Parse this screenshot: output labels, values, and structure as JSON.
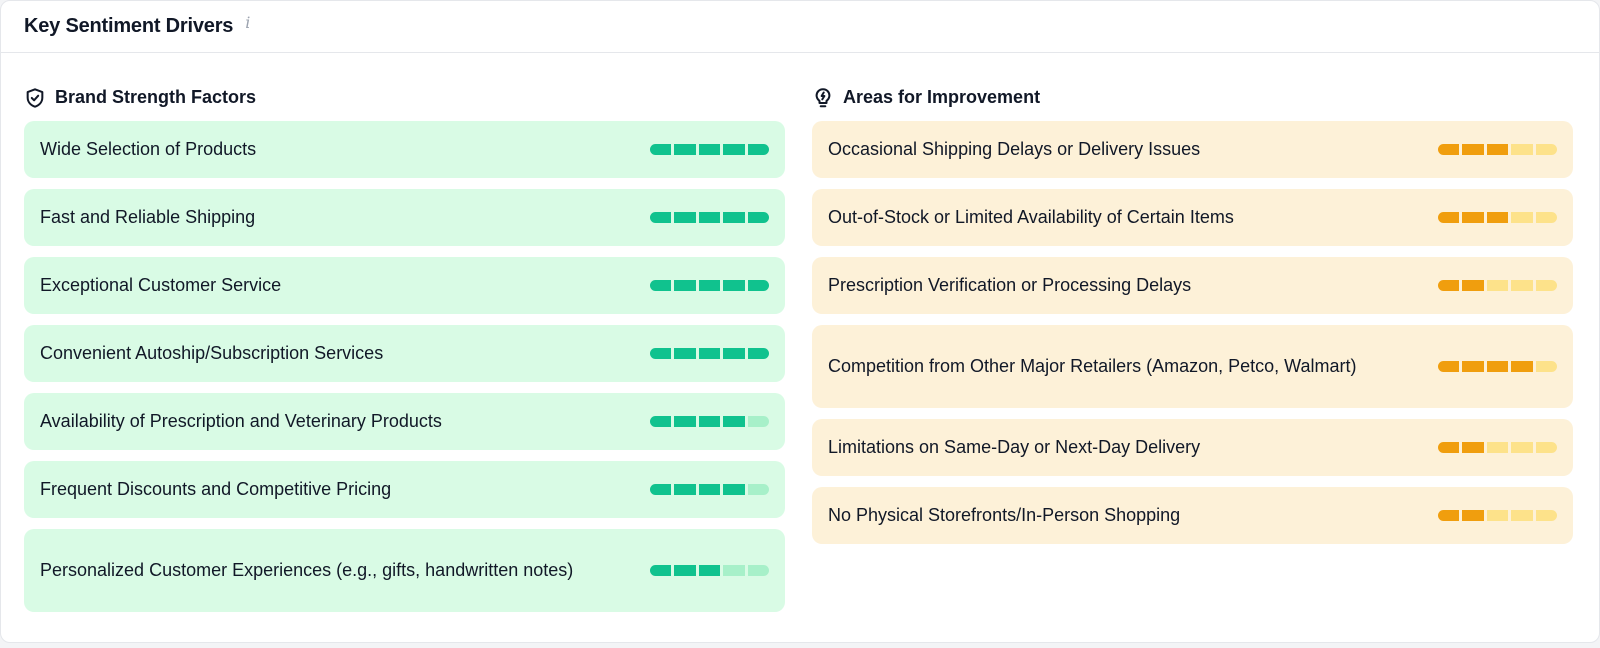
{
  "header": {
    "title": "Key Sentiment Drivers",
    "info_icon": "i"
  },
  "strengths": {
    "title": "Brand Strength Factors",
    "icon": "shield-check-icon",
    "filled_color": "#10c28e",
    "empty_color": "#a7f0c9",
    "items": [
      {
        "label": "Wide Selection of Products",
        "score": 5,
        "max": 5
      },
      {
        "label": "Fast and Reliable Shipping",
        "score": 5,
        "max": 5
      },
      {
        "label": "Exceptional Customer Service",
        "score": 5,
        "max": 5
      },
      {
        "label": "Convenient Autoship/Subscription Services",
        "score": 5,
        "max": 5
      },
      {
        "label": "Availability of Prescription and Veterinary Products",
        "score": 4,
        "max": 5
      },
      {
        "label": "Frequent Discounts and Competitive Pricing",
        "score": 4,
        "max": 5
      },
      {
        "label": "Personalized Customer Experiences (e.g., gifts, handwritten notes)",
        "score": 3,
        "max": 5
      }
    ]
  },
  "improvements": {
    "title": "Areas for Improvement",
    "icon": "lightbulb-icon",
    "filled_color": "#f09e0e",
    "empty_color": "#fde28a",
    "items": [
      {
        "label": "Occasional Shipping Delays or Delivery Issues",
        "score": 3,
        "max": 5
      },
      {
        "label": "Out-of-Stock or Limited Availability of Certain Items",
        "score": 3,
        "max": 5
      },
      {
        "label": "Prescription Verification or Processing Delays",
        "score": 2,
        "max": 5
      },
      {
        "label": "Competition from Other Major Retailers (Amazon, Petco, Walmart)",
        "score": 4,
        "max": 5
      },
      {
        "label": "Limitations on Same-Day or Next-Day Delivery",
        "score": 2,
        "max": 5
      },
      {
        "label": "No Physical Storefronts/In-Person Shopping",
        "score": 2,
        "max": 5
      }
    ]
  }
}
